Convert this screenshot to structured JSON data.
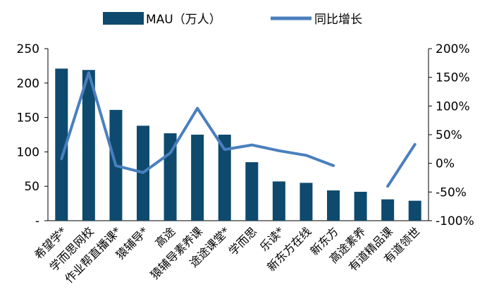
{
  "chart_data": {
    "type": "bar",
    "categories": [
      "希望学*",
      "学而思网校",
      "作业帮直播课*",
      "猿辅导*",
      "高途",
      "猿辅导素养课",
      "途途课堂*",
      "学而思",
      "乐读*",
      "新东方在线",
      "新东方",
      "高途素养",
      "有道精品课",
      "有道领世"
    ],
    "series": [
      {
        "name": "MAU（万人）",
        "type": "bar",
        "axis": "left",
        "color": "#0e4a6e",
        "values": [
          221,
          219,
          161,
          138,
          127,
          125,
          125,
          85,
          57,
          55,
          44,
          42,
          31,
          29
        ]
      },
      {
        "name": "同比增长",
        "type": "line",
        "axis": "right",
        "color": "#4a7fbe",
        "values": [
          0.08,
          1.58,
          -0.04,
          -0.16,
          0.18,
          0.96,
          0.24,
          0.32,
          0.22,
          0.14,
          -0.04,
          null,
          -0.4,
          0.33
        ]
      }
    ],
    "y_left": {
      "ylim": [
        0,
        250
      ],
      "ticks": [
        0,
        50,
        100,
        150,
        200,
        250
      ],
      "tick_labels": [
        "-",
        "50",
        "100",
        "150",
        "200",
        "250"
      ]
    },
    "y_right": {
      "ylim": [
        -1.0,
        2.0
      ],
      "ticks": [
        -1.0,
        -0.5,
        0,
        0.5,
        1.0,
        1.5,
        2.0
      ],
      "tick_labels": [
        "-100%",
        "-50%",
        "0%",
        "50%",
        "100%",
        "150%",
        "200%"
      ]
    },
    "legend_position": "top-center",
    "grid": false
  }
}
